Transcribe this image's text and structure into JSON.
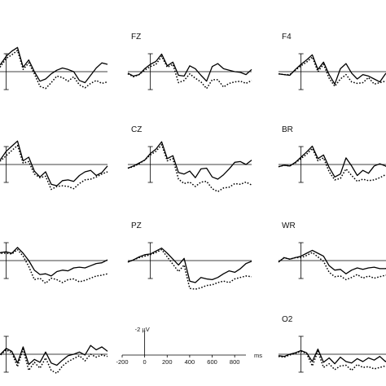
{
  "chart_data": {
    "type": "line",
    "title": "",
    "xlabel": "ms",
    "ylabel": "-2 µV",
    "x_ticks": [
      -200,
      0,
      200,
      400,
      600,
      800
    ],
    "xlim": [
      -200,
      900
    ],
    "ylim_uV": [
      -3,
      5
    ],
    "y_direction": "negative up",
    "series_styles": [
      {
        "style": "solid",
        "color": "#000000"
      },
      {
        "style": "dotted",
        "color": "#000000"
      }
    ],
    "x": [
      -200,
      -150,
      -100,
      -50,
      0,
      50,
      100,
      150,
      200,
      250,
      300,
      350,
      400,
      450,
      500,
      550,
      600,
      650,
      700,
      750,
      800,
      850,
      900
    ],
    "panels": [
      {
        "row": 0,
        "col": 0,
        "label": "",
        "solid": [
          -0.2,
          -0.6,
          -0.3,
          -1.0,
          -2.1,
          -2.8,
          -3.3,
          -0.6,
          -1.6,
          0.0,
          1.3,
          1.0,
          0.3,
          -0.2,
          -0.5,
          -0.3,
          0.0,
          1.2,
          1.5,
          0.5,
          -0.5,
          -1.2,
          -1.0
        ],
        "dotted": [
          -0.1,
          -0.4,
          -0.2,
          -0.7,
          -1.8,
          -2.3,
          -2.9,
          -0.3,
          -1.2,
          0.3,
          2.0,
          2.3,
          1.5,
          0.6,
          0.8,
          1.3,
          0.7,
          1.8,
          2.2,
          1.6,
          1.2,
          1.6,
          1.4
        ]
      },
      {
        "row": 0,
        "col": 1,
        "label": "FZ",
        "solid": [
          0.2,
          0.6,
          0.4,
          -0.4,
          -1.0,
          -1.4,
          -2.4,
          -0.8,
          -1.3,
          0.5,
          0.6,
          -0.8,
          -0.4,
          0.5,
          1.3,
          -0.7,
          -1.1,
          -0.4,
          -0.2,
          0.0,
          0.1,
          0.4,
          -0.3
        ],
        "dotted": [
          0.3,
          0.7,
          0.4,
          -0.2,
          -0.7,
          -1.0,
          -2.1,
          -0.6,
          -1.0,
          1.5,
          1.2,
          0.3,
          0.9,
          1.4,
          2.3,
          1.1,
          1.1,
          2.1,
          1.6,
          1.4,
          1.3,
          1.6,
          1.2
        ]
      },
      {
        "row": 0,
        "col": 2,
        "label": "F4",
        "solid": [
          0.3,
          0.4,
          0.5,
          -0.3,
          -1.0,
          -1.6,
          -2.3,
          -0.3,
          -1.3,
          0.4,
          1.7,
          -0.4,
          -1.1,
          0.2,
          1.0,
          0.4,
          0.6,
          1.0,
          1.4,
          0.3,
          -0.3,
          -0.6,
          -0.4
        ],
        "dotted": [
          0.3,
          0.4,
          0.4,
          -0.2,
          -0.8,
          -1.3,
          -2.0,
          0.0,
          -1.0,
          0.9,
          2.0,
          1.0,
          0.4,
          1.4,
          1.6,
          1.5,
          0.8,
          1.7,
          1.5,
          1.3,
          1.0,
          1.2,
          1.1
        ]
      },
      {
        "row": 1,
        "col": 0,
        "label": "",
        "solid": [
          0.3,
          0.0,
          -0.4,
          -0.7,
          -1.8,
          -2.5,
          -3.2,
          -0.5,
          -1.0,
          0.9,
          1.7,
          1.0,
          2.7,
          2.9,
          2.2,
          2.1,
          2.3,
          1.5,
          1.0,
          0.8,
          1.5,
          1.1,
          0.2
        ],
        "dotted": [
          0.3,
          0.0,
          -0.5,
          -0.5,
          -1.2,
          -1.9,
          -2.6,
          -0.2,
          -0.4,
          1.3,
          1.8,
          1.6,
          3.4,
          3.0,
          2.9,
          3.0,
          3.3,
          2.6,
          2.1,
          2.0,
          1.7,
          1.3,
          1.0
        ]
      },
      {
        "row": 1,
        "col": 1,
        "label": "CZ",
        "solid": [
          0.5,
          0.2,
          -0.2,
          -0.6,
          -1.5,
          -2.1,
          -3.1,
          -0.8,
          -1.2,
          1.1,
          1.3,
          0.9,
          1.8,
          0.6,
          0.5,
          1.7,
          2.0,
          1.4,
          0.6,
          -0.3,
          -0.4,
          0.0,
          -0.6
        ],
        "dotted": [
          0.5,
          0.3,
          -0.1,
          -0.6,
          -1.3,
          -1.8,
          -2.7,
          -0.5,
          -0.8,
          2.0,
          2.6,
          2.4,
          3.0,
          2.4,
          2.3,
          3.3,
          3.7,
          3.2,
          3.1,
          2.6,
          2.7,
          2.4,
          2.8
        ]
      },
      {
        "row": 1,
        "col": 2,
        "label": "BR",
        "solid": [
          0.3,
          0.1,
          0.2,
          -0.3,
          -1.0,
          -1.7,
          -2.5,
          -0.8,
          -1.3,
          0.4,
          1.7,
          1.3,
          -0.9,
          0.2,
          1.5,
          0.8,
          1.2,
          0.2,
          -0.1,
          0.2,
          0.7,
          0.4,
          -0.6
        ],
        "dotted": [
          0.3,
          0.1,
          0.2,
          -0.2,
          -0.8,
          -1.4,
          -2.2,
          -0.5,
          -0.9,
          1.0,
          2.1,
          1.9,
          0.6,
          1.5,
          2.3,
          2.0,
          2.2,
          2.1,
          1.8,
          1.4,
          1.6,
          1.5,
          1.1
        ]
      },
      {
        "row": 2,
        "col": 0,
        "label": "",
        "solid": [
          0.3,
          -0.4,
          -0.5,
          -1.1,
          -1.2,
          -1.0,
          -1.8,
          -1.0,
          0.0,
          1.3,
          1.9,
          1.8,
          2.1,
          1.5,
          1.3,
          1.4,
          1.0,
          0.9,
          1.0,
          0.7,
          0.4,
          0.3,
          -0.1
        ],
        "dotted": [
          0.3,
          -0.3,
          -0.4,
          -1.0,
          -1.0,
          -0.9,
          -1.5,
          -0.6,
          0.8,
          2.6,
          2.4,
          3.1,
          2.4,
          2.6,
          3.0,
          2.6,
          2.5,
          2.9,
          2.7,
          2.4,
          2.1,
          2.0,
          1.8
        ]
      },
      {
        "row": 2,
        "col": 1,
        "label": "PZ",
        "solid": [
          0.2,
          -0.1,
          -0.5,
          -0.8,
          -0.9,
          -1.3,
          -1.7,
          -1.0,
          -0.2,
          0.6,
          -0.3,
          2.8,
          3.0,
          2.3,
          2.5,
          2.6,
          2.3,
          1.8,
          1.4,
          1.6,
          1.1,
          0.4,
          0.1
        ],
        "dotted": [
          0.2,
          -0.1,
          -0.4,
          -0.6,
          -0.8,
          -1.1,
          -1.5,
          -0.5,
          0.5,
          1.5,
          0.6,
          3.8,
          3.9,
          3.7,
          3.4,
          3.3,
          3.0,
          2.8,
          3.0,
          2.5,
          2.3,
          2.1,
          2.2
        ]
      },
      {
        "row": 2,
        "col": 2,
        "label": "WR",
        "solid": [
          0.2,
          -0.4,
          -0.2,
          -0.4,
          -0.6,
          -1.0,
          -1.4,
          -1.0,
          -0.6,
          0.7,
          1.3,
          1.2,
          1.8,
          1.3,
          1.0,
          1.2,
          1.0,
          0.9,
          1.1,
          1.1,
          0.8,
          0.6,
          0.5
        ],
        "dotted": [
          0.2,
          -0.4,
          -0.2,
          -0.4,
          -0.4,
          -0.7,
          -1.1,
          -0.5,
          0.1,
          1.6,
          2.2,
          2.1,
          2.6,
          2.3,
          1.9,
          2.4,
          2.1,
          2.4,
          2.2,
          2.0,
          1.9,
          1.9,
          1.8
        ]
      },
      {
        "row": 3,
        "col": 0,
        "label": "",
        "solid": [
          0.2,
          0.4,
          0.1,
          0.0,
          -0.8,
          -0.4,
          1.2,
          -1.0,
          1.4,
          0.7,
          1.1,
          -0.3,
          1.2,
          1.5,
          0.8,
          0.2,
          0.0,
          -0.3,
          0.1,
          -1.2,
          -0.6,
          -1.0,
          -0.4
        ],
        "dotted": [
          0.3,
          0.5,
          0.2,
          0.1,
          -0.6,
          -0.2,
          1.7,
          -0.7,
          2.2,
          1.1,
          1.9,
          0.5,
          2.2,
          2.6,
          1.6,
          1.0,
          0.6,
          0.2,
          0.9,
          0.0,
          0.4,
          0.1,
          0.3
        ]
      },
      {
        "row": 3,
        "col": 2,
        "label": "O2",
        "solid": [
          0.2,
          0.3,
          0.0,
          -0.2,
          -0.5,
          -0.2,
          1.0,
          -0.7,
          1.1,
          0.5,
          1.3,
          0.4,
          1.0,
          1.2,
          0.6,
          1.0,
          0.5,
          0.8,
          0.3,
          1.0,
          0.5,
          0.8,
          0.6
        ],
        "dotted": [
          0.3,
          0.4,
          0.1,
          -0.1,
          -0.4,
          -0.1,
          1.6,
          -0.4,
          1.8,
          1.3,
          2.1,
          1.6,
          1.5,
          2.2,
          1.4,
          1.8,
          1.7,
          2.0,
          1.8,
          1.6,
          1.9,
          1.7,
          1.8
        ]
      }
    ]
  }
}
